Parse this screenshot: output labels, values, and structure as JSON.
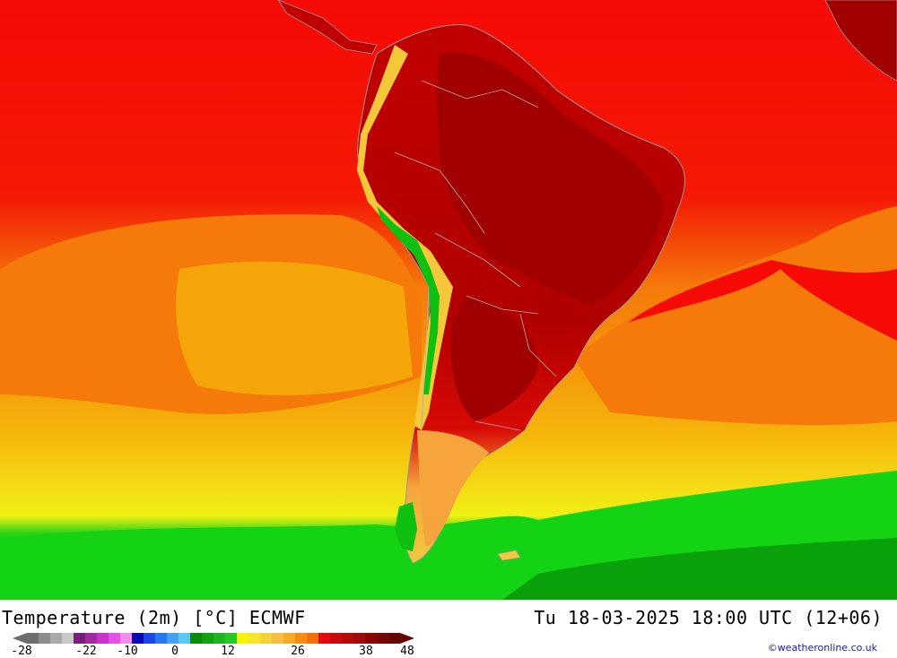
{
  "map": {
    "variable": "Temperature (2m) [°C] ECMWF",
    "valid_time": "Tu 18-03-2025 18:00 UTC (12+06)",
    "credit": "©weatheronline.co.uk",
    "region": "South America",
    "colors": {
      "ocean_warm": "#f50a05",
      "ocean_mid": "#f57a0a",
      "ocean_cool": "#f5a50a",
      "yellow_band": "#f5d614",
      "green_band": "#14d214",
      "land_hot": "#c80000",
      "land_very_hot": "#a00000",
      "andes_green": "#10c010"
    }
  },
  "legend": {
    "swatches": [
      "#6e6e6e",
      "#8c8c8c",
      "#aaaaaa",
      "#c8c8c8",
      "#781e78",
      "#a02aa0",
      "#c832c8",
      "#e650e6",
      "#f08cf0",
      "#0a0ab4",
      "#1e46e6",
      "#2878f0",
      "#46a0f0",
      "#5ac8f0",
      "#0a8c0a",
      "#14a014",
      "#1eb41e",
      "#28c828",
      "#f5f50a",
      "#f5e628",
      "#f5d23c",
      "#f5be46",
      "#f5aa28",
      "#f58c14",
      "#f56e0a",
      "#e60a0a",
      "#c80a0a",
      "#b40a0a",
      "#a00a0a",
      "#8c0505",
      "#780505",
      "#640505"
    ],
    "ticks": [
      "-28",
      "-22",
      "-10",
      "0",
      "12",
      "26",
      "38",
      "48"
    ]
  }
}
